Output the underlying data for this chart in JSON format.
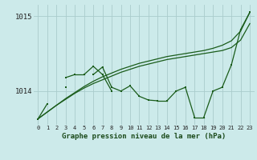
{
  "bg_color": "#cceaea",
  "grid_color": "#aacccc",
  "line_color": "#1a5c1a",
  "title": "Graphe pression niveau de la mer (hPa)",
  "ylim": [
    1013.55,
    1015.15
  ],
  "xlim": [
    -0.5,
    23.5
  ],
  "yticks": [
    1014.0,
    1015.0
  ],
  "ytick_labels": [
    "1014",
    "1015"
  ],
  "smooth_line1": [
    1013.63,
    1013.72,
    1013.81,
    1013.89,
    1013.97,
    1014.04,
    1014.1,
    1014.15,
    1014.2,
    1014.25,
    1014.29,
    1014.33,
    1014.36,
    1014.39,
    1014.42,
    1014.44,
    1014.46,
    1014.48,
    1014.5,
    1014.52,
    1014.54,
    1014.58,
    1014.68,
    1014.9
  ],
  "smooth_line2": [
    1013.63,
    1013.72,
    1013.81,
    1013.9,
    1013.98,
    1014.06,
    1014.13,
    1014.19,
    1014.24,
    1014.29,
    1014.33,
    1014.37,
    1014.4,
    1014.43,
    1014.46,
    1014.48,
    1014.5,
    1014.52,
    1014.54,
    1014.57,
    1014.61,
    1014.67,
    1014.8,
    1015.05
  ],
  "main_line": [
    1013.63,
    1013.83,
    null,
    1014.05,
    null,
    null,
    1014.22,
    1014.32,
    1014.05,
    1014.0,
    1014.07,
    1013.93,
    1013.88,
    1013.87,
    1013.87,
    1014.0,
    1014.05,
    1013.65,
    1013.65,
    1014.0,
    1014.05,
    1014.35,
    1014.82,
    1015.05
  ],
  "upper_arc": [
    null,
    null,
    null,
    1014.18,
    1014.22,
    1014.22,
    1014.33,
    1014.22,
    1014.0,
    null,
    null,
    null,
    null,
    null,
    null,
    null,
    null,
    null,
    null,
    null,
    null,
    null,
    null,
    null
  ]
}
